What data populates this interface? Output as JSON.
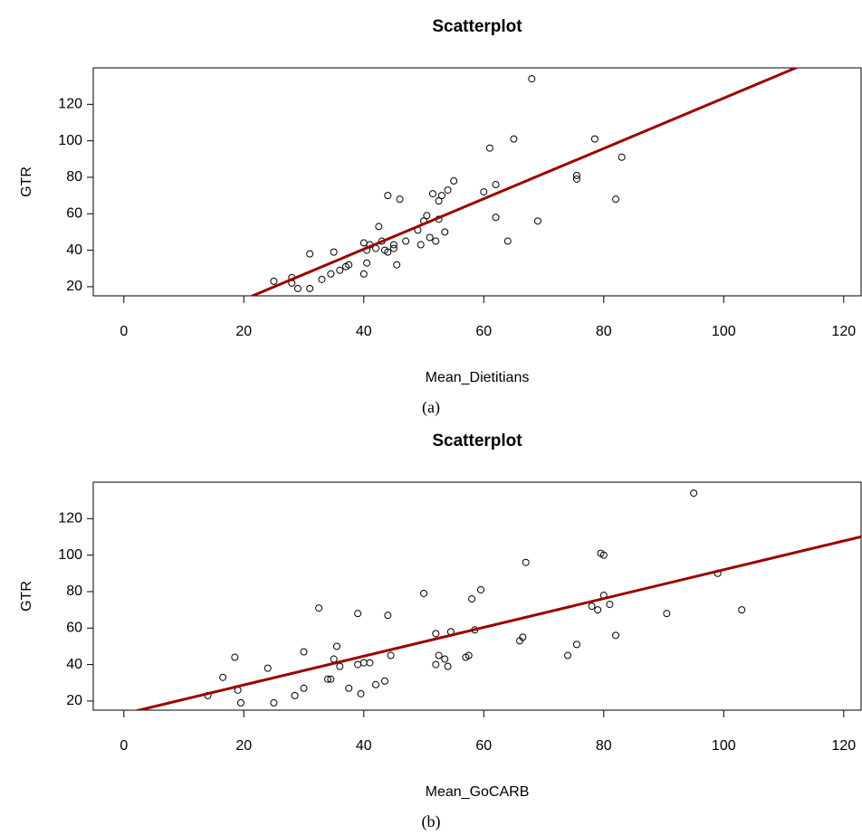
{
  "chart_data": [
    {
      "type": "scatter",
      "title": "Scatterplot",
      "xlabel": "Mean_Dietitians",
      "ylabel": "GTR",
      "caption": "(a)",
      "x": [
        25,
        28,
        28,
        29,
        31,
        31,
        33,
        34.5,
        35,
        36,
        37,
        37.5,
        40,
        40,
        40.5,
        40.5,
        41,
        42,
        42.5,
        43,
        43.5,
        44,
        44,
        45,
        45,
        45.5,
        46,
        47,
        49,
        49.5,
        50,
        50.5,
        51,
        51.5,
        52,
        52.5,
        52.5,
        53,
        53.5,
        54,
        55,
        60,
        61,
        62,
        62,
        64,
        65,
        69,
        75.5,
        75.5,
        78.5,
        82,
        83,
        68
      ],
      "values": [
        23,
        25,
        22,
        19,
        19,
        38,
        24,
        27,
        39,
        29,
        31,
        32,
        27,
        44,
        33,
        40,
        43,
        41,
        53,
        45,
        40,
        39,
        70,
        41,
        43,
        32,
        68,
        45,
        51,
        43,
        56,
        59,
        47,
        71,
        45,
        57,
        67,
        70,
        50,
        73,
        78,
        72,
        96,
        58,
        76,
        45,
        101,
        56,
        79,
        81,
        101,
        68,
        91,
        134
      ],
      "point_color": "#000000",
      "xlim": [
        -5.1,
        122.9
      ],
      "ylim": [
        15,
        140
      ],
      "xticks": [
        0,
        20,
        40,
        60,
        80,
        100,
        120
      ],
      "yticks": [
        20,
        40,
        60,
        80,
        100,
        120
      ],
      "fit_line": {
        "intercept": -14.6,
        "slope": 1.38,
        "color": "#9b0000"
      }
    },
    {
      "type": "scatter",
      "title": "Scatterplot",
      "xlabel": "Mean_GoCARB",
      "ylabel": "GTR",
      "caption": "(b)",
      "x": [
        14,
        16.5,
        18.5,
        19,
        19.5,
        24,
        25,
        28.5,
        30,
        30,
        32.5,
        34,
        34.5,
        35,
        35.5,
        36,
        37.5,
        39,
        39,
        39.5,
        40,
        41,
        42,
        43.5,
        44,
        44.5,
        50,
        52,
        52,
        52.5,
        53.5,
        54,
        54.5,
        57,
        57.5,
        58,
        58.5,
        59.5,
        66,
        66.5,
        67,
        74,
        75.5,
        78,
        79,
        79.5,
        80,
        80,
        81,
        82,
        90.5,
        99,
        103,
        95
      ],
      "values": [
        23,
        33,
        44,
        26,
        19,
        38,
        19,
        23,
        27,
        47,
        71,
        32,
        32,
        43,
        50,
        39,
        27,
        40,
        68,
        24,
        41,
        41,
        29,
        31,
        67,
        45,
        79,
        40,
        57,
        45,
        43,
        39,
        58,
        44,
        45,
        76,
        59,
        81,
        53,
        55,
        96,
        45,
        51,
        72,
        70,
        101,
        100,
        78,
        73,
        56,
        68,
        90,
        70,
        134
      ],
      "point_color": "#000000",
      "xlim": [
        -5.1,
        122.9
      ],
      "ylim": [
        15,
        140
      ],
      "xticks": [
        0,
        20,
        40,
        60,
        80,
        100,
        120
      ],
      "yticks": [
        20,
        40,
        60,
        80,
        100,
        120
      ],
      "fit_line": {
        "intercept": 13,
        "slope": 0.79,
        "color": "#9b0000"
      }
    }
  ]
}
